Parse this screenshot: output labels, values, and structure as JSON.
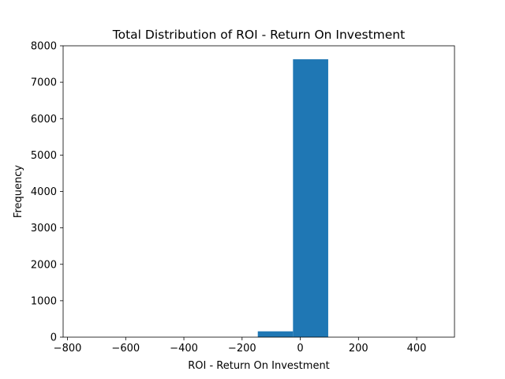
{
  "chart_data": {
    "type": "bar",
    "subtype": "histogram",
    "title": "Total Distribution of ROI - Return On Investment",
    "xlabel": "ROI - Return On Investment",
    "ylabel": "Frequency",
    "xlim": [
      -815,
      530
    ],
    "ylim": [
      0,
      8000
    ],
    "x_ticks": [
      -800,
      -600,
      -400,
      -200,
      0,
      200,
      400
    ],
    "x_tick_labels": [
      "−800",
      "−600",
      "−400",
      "−200",
      "0",
      "200",
      "400"
    ],
    "y_ticks": [
      0,
      1000,
      2000,
      3000,
      4000,
      5000,
      6000,
      7000,
      8000
    ],
    "y_tick_labels": [
      "0",
      "1000",
      "2000",
      "3000",
      "4000",
      "5000",
      "6000",
      "7000",
      "8000"
    ],
    "bins": [
      {
        "x0": -751,
        "x1": -630,
        "count": 0
      },
      {
        "x0": -630,
        "x1": -509,
        "count": 0
      },
      {
        "x0": -509,
        "x1": -388,
        "count": 0
      },
      {
        "x0": -388,
        "x1": -267,
        "count": 0
      },
      {
        "x0": -267,
        "x1": -146,
        "count": 0
      },
      {
        "x0": -146,
        "x1": -25,
        "count": 160
      },
      {
        "x0": -25,
        "x1": 96,
        "count": 7630
      },
      {
        "x0": 96,
        "x1": 217,
        "count": 0
      },
      {
        "x0": 217,
        "x1": 338,
        "count": 0
      },
      {
        "x0": 338,
        "x1": 459,
        "count": 0
      }
    ],
    "grid": false,
    "legend": "none",
    "bar_color": "#1f77b4"
  }
}
